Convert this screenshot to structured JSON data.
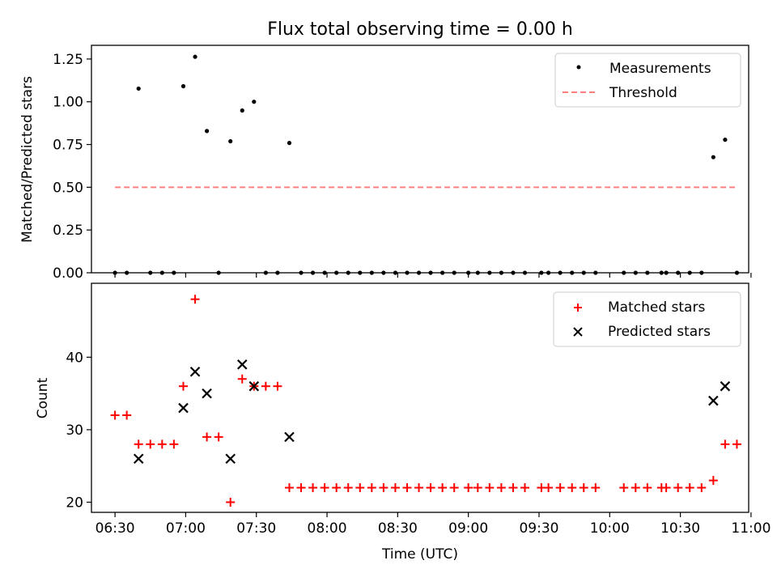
{
  "title": "Flux total observing time = 0.00 h",
  "colors": {
    "measurements": "#000000",
    "threshold": "#ff7f7f",
    "matched": "#ff0000",
    "predicted": "#000000"
  },
  "chart_data": [
    {
      "type": "scatter",
      "panel": "top",
      "ylabel": "Matched/Predicted stars",
      "xlim": [
        "06:20",
        "10:59"
      ],
      "ylim": [
        0,
        1.33
      ],
      "yticks": [
        0.0,
        0.25,
        0.5,
        0.75,
        1.0,
        1.25
      ],
      "ytick_labels": [
        "0.00",
        "0.25",
        "0.50",
        "0.75",
        "1.00",
        "1.25"
      ],
      "legend": [
        "Measurements",
        "Threshold"
      ],
      "legend_position": "top-right",
      "series": [
        {
          "name": "Measurements",
          "points": [
            [
              "06:30",
              0
            ],
            [
              "06:35",
              0
            ],
            [
              "06:40",
              1.077
            ],
            [
              "06:45",
              0
            ],
            [
              "06:50",
              0
            ],
            [
              "06:55",
              0
            ],
            [
              "06:59",
              1.091
            ],
            [
              "07:04",
              1.263
            ],
            [
              "07:09",
              0.829
            ],
            [
              "07:14",
              0
            ],
            [
              "07:19",
              0.769
            ],
            [
              "07:24",
              0.949
            ],
            [
              "07:29",
              1.0
            ],
            [
              "07:34",
              0
            ],
            [
              "07:39",
              0
            ],
            [
              "07:44",
              0.759
            ],
            [
              "07:49",
              0
            ],
            [
              "07:54",
              0
            ],
            [
              "07:59",
              0
            ],
            [
              "08:04",
              0
            ],
            [
              "08:09",
              0
            ],
            [
              "08:14",
              0
            ],
            [
              "08:19",
              0
            ],
            [
              "08:24",
              0
            ],
            [
              "08:29",
              0
            ],
            [
              "08:34",
              0
            ],
            [
              "08:39",
              0
            ],
            [
              "08:44",
              0
            ],
            [
              "08:49",
              0
            ],
            [
              "08:54",
              0
            ],
            [
              "09:00",
              0
            ],
            [
              "09:04",
              0
            ],
            [
              "09:09",
              0
            ],
            [
              "09:14",
              0
            ],
            [
              "09:19",
              0
            ],
            [
              "09:24",
              0
            ],
            [
              "09:31",
              0
            ],
            [
              "09:34",
              0
            ],
            [
              "09:39",
              0
            ],
            [
              "09:44",
              0
            ],
            [
              "09:49",
              0
            ],
            [
              "09:54",
              0
            ],
            [
              "10:06",
              0
            ],
            [
              "10:11",
              0
            ],
            [
              "10:16",
              0
            ],
            [
              "10:22",
              0
            ],
            [
              "10:24",
              0
            ],
            [
              "10:29",
              0
            ],
            [
              "10:34",
              0
            ],
            [
              "10:39",
              0
            ],
            [
              "10:44",
              0.676
            ],
            [
              "10:49",
              0.778
            ],
            [
              "10:54",
              0
            ]
          ]
        },
        {
          "name": "Threshold",
          "style": "dashed",
          "points": [
            [
              "06:30",
              0.5
            ],
            [
              "10:54",
              0.5
            ]
          ]
        }
      ]
    },
    {
      "type": "scatter",
      "panel": "bottom",
      "xlabel": "Time (UTC)",
      "ylabel": "Count",
      "xlim": [
        "06:20",
        "10:59"
      ],
      "ylim": [
        18.6,
        50.2
      ],
      "yticks": [
        20,
        30,
        40
      ],
      "xticks": [
        "06:30",
        "07:00",
        "07:30",
        "08:00",
        "08:30",
        "09:00",
        "09:30",
        "10:00",
        "10:30",
        "11:00"
      ],
      "legend": [
        "Matched stars",
        "Predicted stars"
      ],
      "legend_position": "top-right",
      "series": [
        {
          "name": "Matched stars",
          "marker": "+",
          "points": [
            [
              "06:30",
              32
            ],
            [
              "06:35",
              32
            ],
            [
              "06:40",
              28
            ],
            [
              "06:45",
              28
            ],
            [
              "06:50",
              28
            ],
            [
              "06:55",
              28
            ],
            [
              "06:59",
              36
            ],
            [
              "07:04",
              48
            ],
            [
              "07:09",
              29
            ],
            [
              "07:14",
              29
            ],
            [
              "07:19",
              20
            ],
            [
              "07:24",
              37
            ],
            [
              "07:29",
              36
            ],
            [
              "07:34",
              36
            ],
            [
              "07:39",
              36
            ],
            [
              "07:44",
              22
            ],
            [
              "07:49",
              22
            ],
            [
              "07:54",
              22
            ],
            [
              "07:59",
              22
            ],
            [
              "08:04",
              22
            ],
            [
              "08:09",
              22
            ],
            [
              "08:14",
              22
            ],
            [
              "08:19",
              22
            ],
            [
              "08:24",
              22
            ],
            [
              "08:29",
              22
            ],
            [
              "08:34",
              22
            ],
            [
              "08:39",
              22
            ],
            [
              "08:44",
              22
            ],
            [
              "08:49",
              22
            ],
            [
              "08:54",
              22
            ],
            [
              "09:00",
              22
            ],
            [
              "09:04",
              22
            ],
            [
              "09:09",
              22
            ],
            [
              "09:14",
              22
            ],
            [
              "09:19",
              22
            ],
            [
              "09:24",
              22
            ],
            [
              "09:31",
              22
            ],
            [
              "09:34",
              22
            ],
            [
              "09:39",
              22
            ],
            [
              "09:44",
              22
            ],
            [
              "09:49",
              22
            ],
            [
              "09:54",
              22
            ],
            [
              "10:06",
              22
            ],
            [
              "10:11",
              22
            ],
            [
              "10:16",
              22
            ],
            [
              "10:22",
              22
            ],
            [
              "10:24",
              22
            ],
            [
              "10:29",
              22
            ],
            [
              "10:34",
              22
            ],
            [
              "10:39",
              22
            ],
            [
              "10:44",
              23
            ],
            [
              "10:49",
              28
            ],
            [
              "10:54",
              28
            ]
          ]
        },
        {
          "name": "Predicted stars",
          "marker": "x",
          "points": [
            [
              "06:40",
              26
            ],
            [
              "06:59",
              33
            ],
            [
              "07:04",
              38
            ],
            [
              "07:09",
              35
            ],
            [
              "07:19",
              26
            ],
            [
              "07:24",
              39
            ],
            [
              "07:29",
              36
            ],
            [
              "07:44",
              29
            ],
            [
              "10:44",
              34
            ],
            [
              "10:49",
              36
            ]
          ]
        }
      ]
    }
  ]
}
